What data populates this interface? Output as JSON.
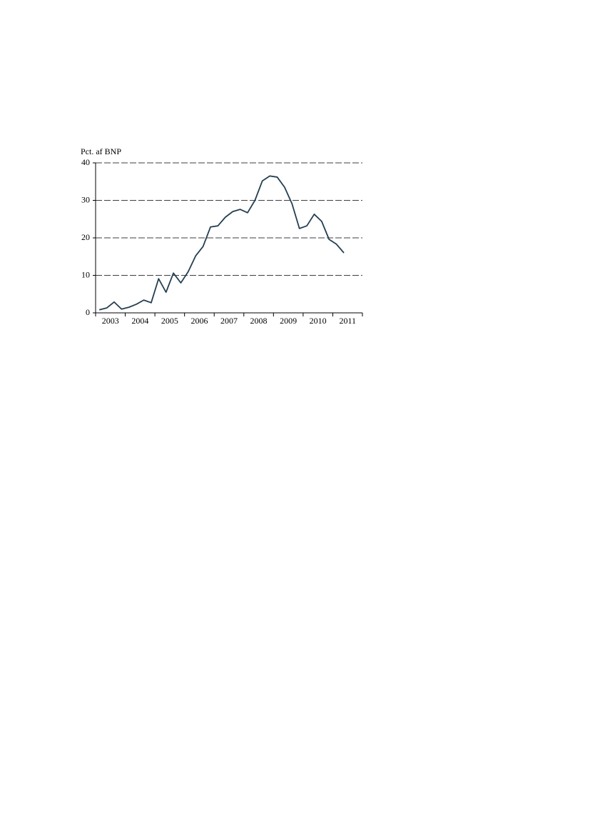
{
  "chart_data": {
    "type": "line",
    "y_axis_label": "Pct. af BNP",
    "x": [
      2003.125,
      2003.375,
      2003.625,
      2003.875,
      2004.125,
      2004.375,
      2004.625,
      2004.875,
      2005.125,
      2005.375,
      2005.625,
      2005.875,
      2006.125,
      2006.375,
      2006.625,
      2006.875,
      2007.125,
      2007.375,
      2007.625,
      2007.875,
      2008.125,
      2008.375,
      2008.625,
      2008.875,
      2009.125,
      2009.375,
      2009.625,
      2009.875,
      2010.125,
      2010.375,
      2010.625,
      2010.875,
      2011.125,
      2011.375
    ],
    "series": [
      {
        "color": "#243f52",
        "values": [
          0.8,
          1.3,
          2.9,
          1.0,
          1.5,
          2.3,
          3.4,
          2.7,
          9.1,
          5.5,
          10.6,
          8.0,
          11.0,
          15.2,
          17.7,
          22.9,
          23.2,
          25.5,
          27.0,
          27.6,
          26.7,
          30.0,
          35.2,
          36.5,
          36.2,
          33.5,
          29.1,
          22.5,
          23.2,
          26.3,
          24.4,
          19.6,
          18.3,
          16.0
        ]
      }
    ],
    "xlim": [
      2003,
      2012
    ],
    "xticks": [
      {
        "value": 2003.5,
        "label": "2003"
      },
      {
        "value": 2004.5,
        "label": "2004"
      },
      {
        "value": 2005.5,
        "label": "2005"
      },
      {
        "value": 2006.5,
        "label": "2006"
      },
      {
        "value": 2007.5,
        "label": "2007"
      },
      {
        "value": 2008.5,
        "label": "2008"
      },
      {
        "value": 2009.5,
        "label": "2009"
      },
      {
        "value": 2010.5,
        "label": "2010"
      },
      {
        "value": 2011.5,
        "label": "2011"
      }
    ],
    "ylim": [
      0,
      40
    ],
    "yticks": [
      0,
      10,
      20,
      30,
      40
    ],
    "grid": true
  }
}
